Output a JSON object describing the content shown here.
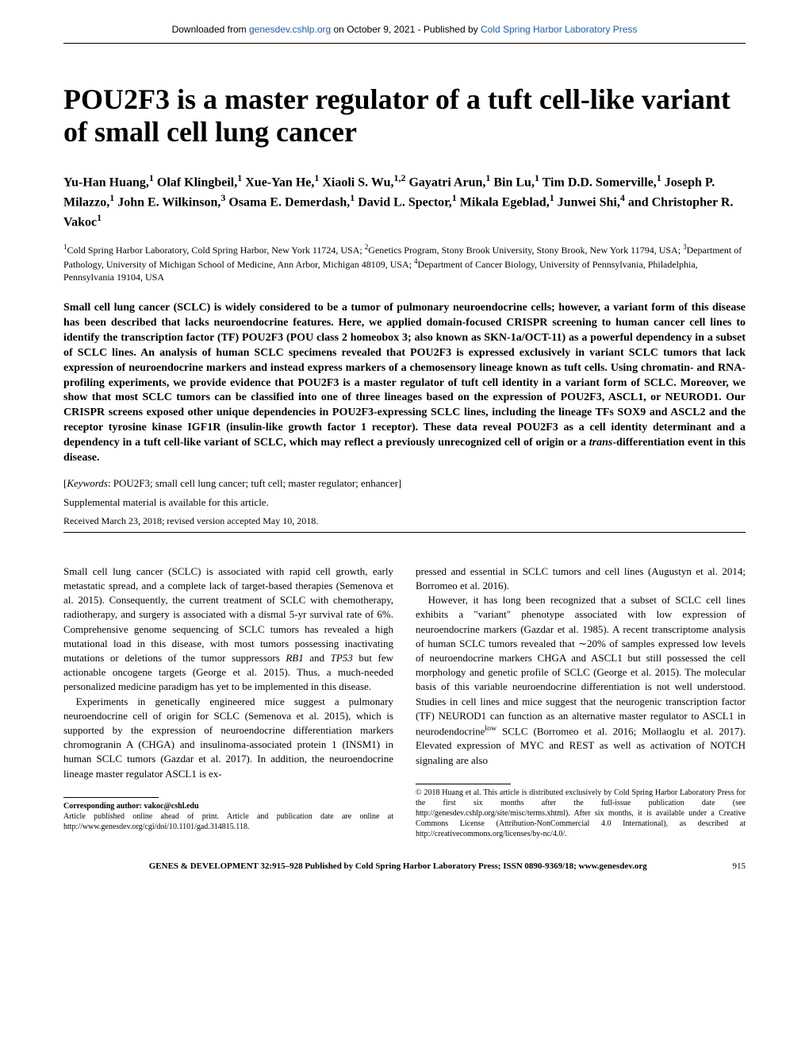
{
  "download_bar": {
    "prefix": "Downloaded from ",
    "link1": "genesdev.cshlp.org",
    "mid": " on October 9, 2021 - Published by ",
    "link2": "Cold Spring Harbor Laboratory Press"
  },
  "title": "POU2F3 is a master regulator of a tuft cell-like variant of small cell lung cancer",
  "authors_html": "Yu-Han Huang,<sup>1</sup> Olaf Klingbeil,<sup>1</sup> Xue-Yan He,<sup>1</sup> Xiaoli S. Wu,<sup>1,2</sup> Gayatri Arun,<sup>1</sup> Bin Lu,<sup>1</sup> Tim D.D. Somerville,<sup>1</sup> Joseph P. Milazzo,<sup>1</sup> John E. Wilkinson,<sup>3</sup> Osama E. Demerdash,<sup>1</sup> David L. Spector,<sup>1</sup> Mikala Egeblad,<sup>1</sup> Junwei Shi,<sup>4</sup> and Christopher R. Vakoc<sup>1</sup>",
  "affiliations_html": "<sup>1</sup>Cold Spring Harbor Laboratory, Cold Spring Harbor, New York 11724, USA; <sup>2</sup>Genetics Program, Stony Brook University, Stony Brook, New York 11794, USA; <sup>3</sup>Department of Pathology, University of Michigan School of Medicine, Ann Arbor, Michigan 48109, USA; <sup>4</sup>Department of Cancer Biology, University of Pennsylvania, Philadelphia, Pennsylvania 19104, USA",
  "abstract_html": "Small cell lung cancer (SCLC) is widely considered to be a tumor of pulmonary neuroendocrine cells; however, a variant form of this disease has been described that lacks neuroendocrine features. Here, we applied domain-focused CRISPR screening to human cancer cell lines to identify the transcription factor (TF) POU2F3 (POU class 2 homeobox 3; also known as SKN-1a/OCT-11) as a powerful dependency in a subset of SCLC lines. An analysis of human SCLC specimens revealed that POU2F3 is expressed exclusively in variant SCLC tumors that lack expression of neuroendocrine markers and instead express markers of a chemosensory lineage known as tuft cells. Using chromatin- and RNA-profiling experiments, we provide evidence that POU2F3 is a master regulator of tuft cell identity in a variant form of SCLC. Moreover, we show that most SCLC tumors can be classified into one of three lineages based on the expression of POU2F3, ASCL1, or NEUROD1. Our CRISPR screens exposed other unique dependencies in POU2F3-expressing SCLC lines, including the lineage TFs SOX9 and ASCL2 and the receptor tyrosine kinase IGF1R (insulin-like growth factor 1 receptor). These data reveal POU2F3 as a cell identity determinant and a dependency in a tuft cell-like variant of SCLC, which may reflect a previously unrecognized cell of origin or a <span class=\"italic\">trans</span>-differentiation event in this disease.",
  "keywords": {
    "label": "Keywords",
    "text": ": POU2F3; small cell lung cancer; tuft cell; master regulator; enhancer]"
  },
  "supplemental": "Supplemental material is available for this article.",
  "received": "Received March 23, 2018; revised version accepted May 10, 2018.",
  "body": {
    "left": {
      "p1_html": "Small cell lung cancer (SCLC) is associated with rapid cell growth, early metastatic spread, and a complete lack of target-based therapies (Semenova et al. 2015). Consequently, the current treatment of SCLC with chemotherapy, radiotherapy, and surgery is associated with a dismal 5-yr survival rate of 6%. Comprehensive genome sequencing of SCLC tumors has revealed a high mutational load in this disease, with most tumors possessing inactivating mutations or deletions of the tumor suppressors <span class=\"italic\">RB1</span> and <span class=\"italic\">TP53</span> but few actionable oncogene targets (George et al. 2015). Thus, a much-needed personalized medicine paradigm has yet to be implemented in this disease.",
      "p2_html": "Experiments in genetically engineered mice suggest a pulmonary neuroendocrine cell of origin for SCLC (Semenova et al. 2015), which is supported by the expression of neuroendocrine differentiation markers chromogranin A (CHGA) and insulinoma-associated protein 1 (INSM1) in human SCLC tumors (Gazdar et al. 2017). In addition, the neuroendocrine lineage master regulator ASCL1 is ex-"
    },
    "right": {
      "p1_html": "pressed and essential in SCLC tumors and cell lines (Augustyn et al. 2014; Borromeo et al. 2016).",
      "p2_html": "However, it has long been recognized that a subset of SCLC cell lines exhibits a \"variant\" phenotype associated with low expression of neuroendocrine markers (Gazdar et al. 1985). A recent transcriptome analysis of human SCLC tumors revealed that ∼20% of samples expressed low levels of neuroendocrine markers CHGA and ASCL1 but still possessed the cell morphology and genetic profile of SCLC (George et al. 2015). The molecular basis of this variable neuroendocrine differentiation is not well understood. Studies in cell lines and mice suggest that the neurogenic transcription factor (TF) NEUROD1 can function as an alternative master regulator to ASCL1 in neurodendocrine<sup>low</sup> SCLC (Borromeo et al. 2016; Mollaoglu et al. 2017). Elevated expression of MYC and REST as well as activation of NOTCH signaling are also"
    }
  },
  "footer_left": {
    "corr_label": "Corresponding author: ",
    "corr_email": "vakoc@cshl.edu",
    "note": "Article published online ahead of print. Article and publication date are online at http://www.genesdev.org/cgi/doi/10.1101/gad.314815.118."
  },
  "footer_right": "© 2018 Huang et al.   This article is distributed exclusively by Cold Spring Harbor Laboratory Press for the first six months after the full-issue publication date (see http://genesdev.cshlp.org/site/misc/terms.xhtml). After six months, it is available under a Creative Commons License (Attribution-NonCommercial 4.0 International), as described at http://creativecommons.org/licenses/by-nc/4.0/.",
  "page_footer": {
    "text": "GENES & DEVELOPMENT 32:915–928 Published by Cold Spring Harbor Laboratory Press; ISSN 0890-9369/18; www.genesdev.org",
    "pagenum": "915"
  },
  "colors": {
    "link": "#1a5fb4",
    "text": "#000000",
    "background": "#ffffff"
  }
}
